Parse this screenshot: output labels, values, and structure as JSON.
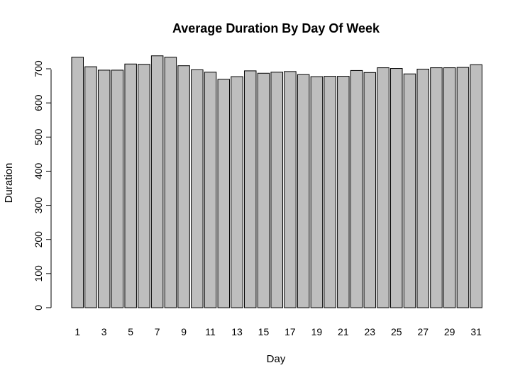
{
  "chart_data": {
    "type": "bar",
    "title": "Average Duration By Day Of Week",
    "xlabel": "Day",
    "ylabel": "Duration",
    "ylim": [
      0,
      740
    ],
    "yticks": [
      0,
      100,
      200,
      300,
      400,
      500,
      600,
      700
    ],
    "categories": [
      "1",
      "2",
      "3",
      "4",
      "5",
      "6",
      "7",
      "8",
      "9",
      "10",
      "11",
      "12",
      "13",
      "14",
      "15",
      "16",
      "17",
      "18",
      "19",
      "20",
      "21",
      "22",
      "23",
      "24",
      "25",
      "26",
      "27",
      "28",
      "29",
      "30",
      "31"
    ],
    "xtick_labels": [
      "1",
      "3",
      "5",
      "7",
      "9",
      "11",
      "13",
      "15",
      "17",
      "19",
      "21",
      "23",
      "25",
      "27",
      "29",
      "31"
    ],
    "values": [
      734,
      706,
      696,
      696,
      714,
      713,
      738,
      734,
      709,
      697,
      690,
      669,
      677,
      694,
      687,
      690,
      692,
      683,
      677,
      678,
      678,
      695,
      689,
      703,
      701,
      685,
      699,
      703,
      703,
      704,
      712
    ],
    "bar_color": "#bebebe",
    "bar_edge_color": "#000000",
    "grid": false,
    "legend": "none"
  }
}
